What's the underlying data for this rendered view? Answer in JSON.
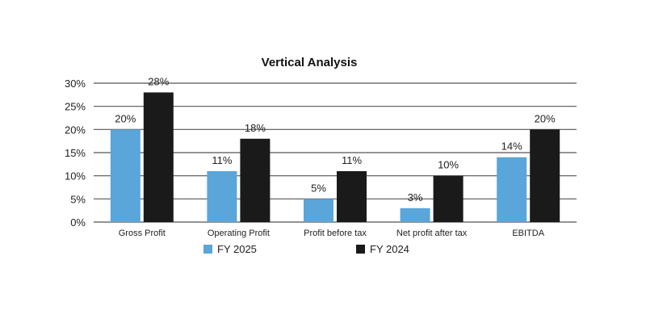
{
  "chart_data": {
    "type": "bar",
    "title": "Vertical Analysis",
    "categories": [
      "Gross Profit",
      "Operating Profit",
      "Profit before tax",
      "Net profit after tax",
      "EBITDA"
    ],
    "series": [
      {
        "name": "FY 2025",
        "color": "#5aa5d9",
        "values": [
          20,
          11,
          5,
          3,
          14
        ],
        "labels": [
          "20%",
          "11%",
          "5%",
          "3%",
          "14%"
        ]
      },
      {
        "name": "FY 2024",
        "color": "#1a1a1a",
        "values": [
          28,
          18,
          11,
          10,
          20
        ],
        "labels": [
          "28%",
          "18%",
          "11%",
          "10%",
          "20%"
        ]
      }
    ],
    "ylim": [
      0,
      30
    ],
    "yticks": [
      0,
      5,
      10,
      15,
      20,
      25,
      30
    ],
    "ytick_labels": [
      "0%",
      "5%",
      "10%",
      "15%",
      "20%",
      "25%",
      "30%"
    ],
    "grid": true,
    "legend_position": "bottom"
  }
}
